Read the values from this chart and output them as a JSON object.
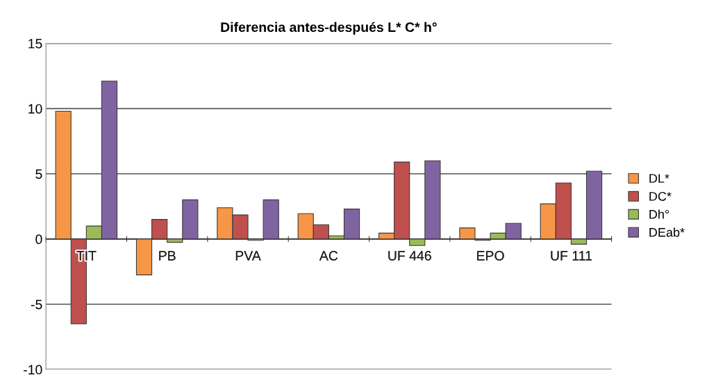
{
  "chart_data": {
    "type": "bar",
    "title": "Diferencia antes-después L* C* h°",
    "categories": [
      "TIT",
      "PB",
      "PVA",
      "AC",
      "UF 446",
      "EPO",
      "UF 111"
    ],
    "series": [
      {
        "name": "DL*",
        "color": "#f79646",
        "values": [
          9.8,
          -2.75,
          2.4,
          1.95,
          0.45,
          0.85,
          2.7
        ]
      },
      {
        "name": "DC*",
        "color": "#c0504d",
        "values": [
          -6.5,
          1.5,
          1.85,
          1.1,
          5.9,
          -0.1,
          4.3
        ]
      },
      {
        "name": "Dh°",
        "color": "#9bbb59",
        "values": [
          1.0,
          -0.25,
          -0.1,
          0.25,
          -0.5,
          0.45,
          -0.4
        ]
      },
      {
        "name": "DEab*",
        "color": "#8064a2",
        "values": [
          12.1,
          3.0,
          3.0,
          2.3,
          6.0,
          1.2,
          5.2
        ]
      }
    ],
    "ylim": [
      -10,
      15
    ],
    "yticks": [
      -10,
      -5,
      0,
      5,
      10,
      15
    ],
    "grid": "y",
    "legend": "right"
  }
}
